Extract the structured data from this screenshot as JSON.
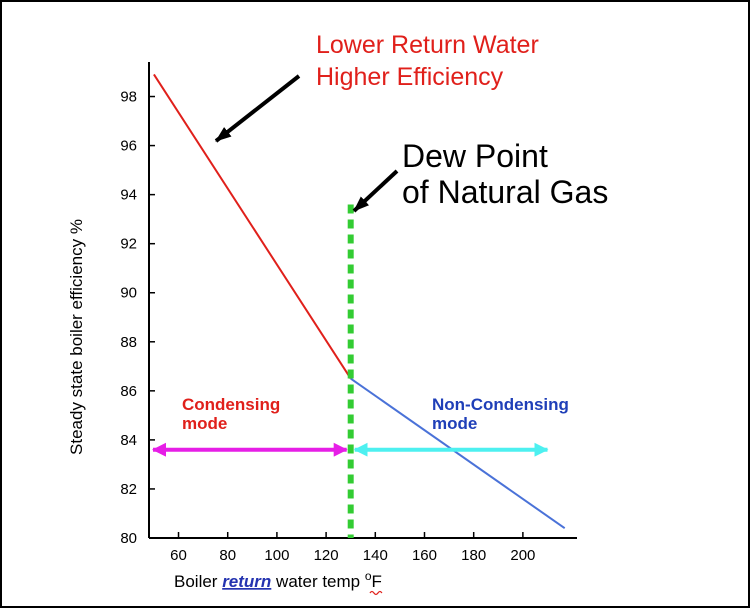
{
  "chart_data": {
    "type": "line",
    "ylabel": "Steady state boiler efficiency %",
    "xlabel_parts": [
      {
        "text": "Boiler ",
        "style": "plain"
      },
      {
        "text": "return",
        "style": "emph"
      },
      {
        "text": " water temp ",
        "style": "plain"
      },
      {
        "text": "o",
        "style": "sup"
      },
      {
        "text": "F",
        "style": "underline-red"
      }
    ],
    "xlim": [
      48,
      222
    ],
    "ylim": [
      80,
      99
    ],
    "x_ticks": [
      60,
      80,
      100,
      120,
      140,
      160,
      180,
      200
    ],
    "y_ticks": [
      80,
      82,
      84,
      86,
      88,
      90,
      92,
      94,
      96,
      98
    ],
    "series": [
      {
        "color": "#e0201b",
        "points": [
          [
            50,
            98.9
          ],
          [
            130,
            86.5
          ]
        ]
      },
      {
        "color": "#4a72d8",
        "points": [
          [
            130,
            86.5
          ],
          [
            217,
            80.4
          ]
        ]
      }
    ],
    "dew_point": {
      "x": 130,
      "y_top": 93.6,
      "color": "#33cc33"
    },
    "annotations": {
      "lower_return": [
        "Lower Return Water",
        "Higher Efficiency"
      ],
      "dew_point": [
        "Dew Point",
        "of Natural Gas"
      ],
      "condensing": [
        "Condensing",
        "mode"
      ],
      "non_condensing": [
        "Non-Condensing",
        "mode"
      ]
    },
    "colors": {
      "annotation_red": "#e0201b",
      "condensing_arrow": "#e61ee6",
      "non_condensing_arrow": "#4df0f0",
      "non_condensing_text": "#1f3fb8",
      "emph_text": "#2433b0"
    }
  }
}
